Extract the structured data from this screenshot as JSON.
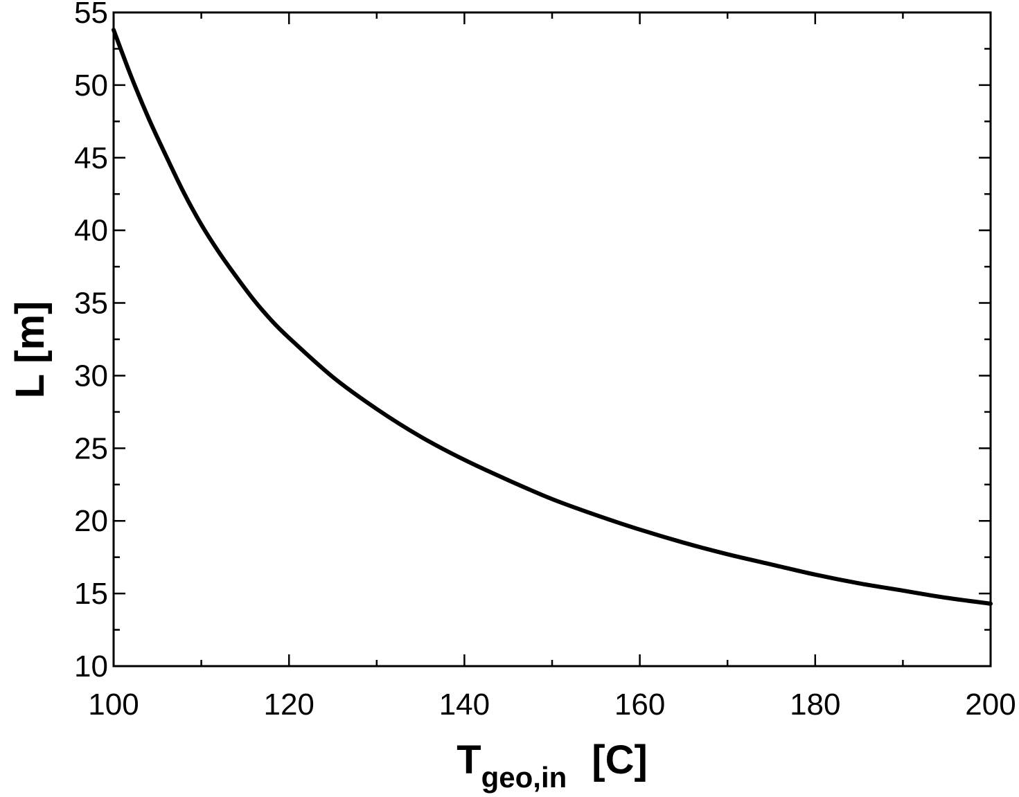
{
  "chart_data": {
    "type": "line",
    "title": "",
    "xlabel": {
      "main": "T",
      "subscript": "geo,in",
      "unit": "[C]"
    },
    "ylabel": "L [m]",
    "xlim": [
      100,
      200
    ],
    "ylim": [
      10,
      55
    ],
    "x_ticks": [
      100,
      120,
      140,
      160,
      180,
      200
    ],
    "y_ticks": [
      10,
      15,
      20,
      25,
      30,
      35,
      40,
      45,
      50,
      55
    ],
    "x_minor_step": 10,
    "y_minor_step": 2.5,
    "grid": false,
    "legend": "none",
    "line_color": "#000000",
    "series": [
      {
        "x": [
          100,
          102,
          104,
          106,
          108,
          110,
          112,
          114,
          116,
          118,
          120,
          125,
          130,
          135,
          140,
          145,
          150,
          155,
          160,
          165,
          170,
          175,
          180,
          185,
          190,
          195,
          200
        ],
        "y": [
          53.8,
          50.6,
          47.7,
          45.1,
          42.6,
          40.4,
          38.5,
          36.8,
          35.2,
          33.8,
          32.6,
          29.9,
          27.7,
          25.8,
          24.2,
          22.8,
          21.5,
          20.4,
          19.4,
          18.5,
          17.7,
          17.0,
          16.3,
          15.7,
          15.2,
          14.7,
          14.3
        ]
      }
    ]
  }
}
